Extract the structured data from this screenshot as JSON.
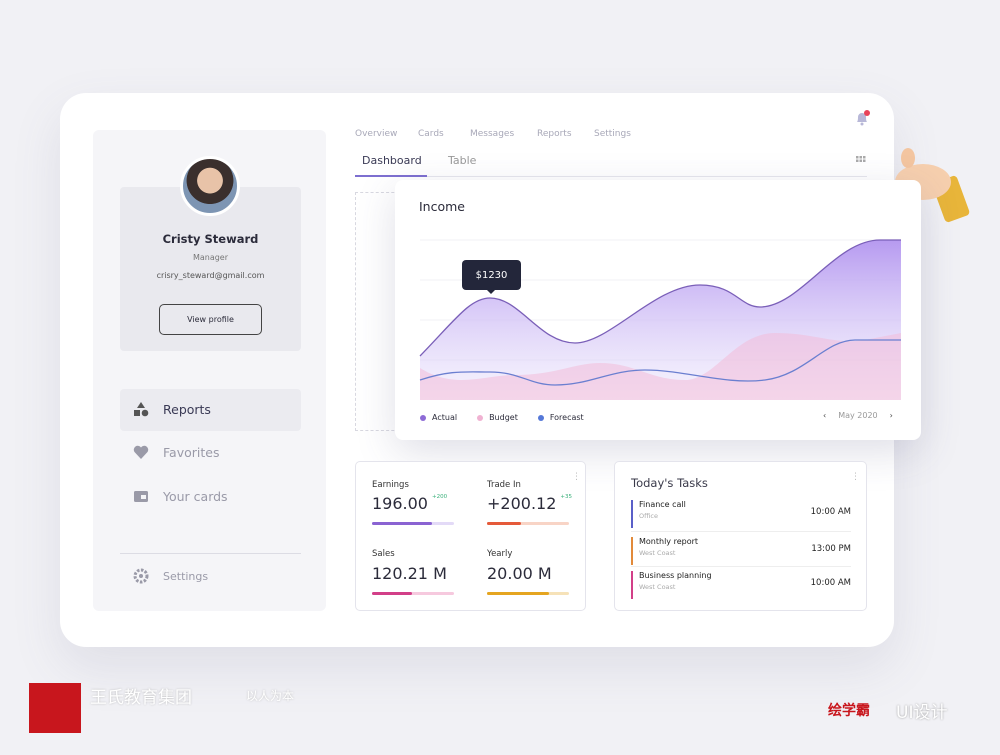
{
  "nav": [
    "Overview",
    "Cards",
    "Messages",
    "Reports",
    "Settings"
  ],
  "tabs": [
    "Dashboard",
    "Table"
  ],
  "profile": {
    "name": "Cristy Steward",
    "role": "Manager",
    "email": "crisry_steward@gmail.com",
    "button": "View profile"
  },
  "menu": [
    "Reports",
    "Favorites",
    "Your cards"
  ],
  "settings": "Settings",
  "income": {
    "title": "Income",
    "tooltip": "$1230",
    "legend": [
      "Actual",
      "Budget",
      "Forecast"
    ],
    "period": "May 2020"
  },
  "stats": [
    {
      "label": "Earnings",
      "value": "196.00",
      "change": "+200"
    },
    {
      "label": "Trade In",
      "value": "+200.12",
      "change": "+35"
    },
    {
      "label": "Sales",
      "value": "120.21 M"
    },
    {
      "label": "Yearly",
      "value": "20.00 M"
    }
  ],
  "tasks": {
    "title": "Today's Tasks",
    "items": [
      {
        "name": "Finance call",
        "place": "Office",
        "time": "10:00 AM"
      },
      {
        "name": "Monthly report",
        "place": "West Coast",
        "time": "13:00 PM"
      },
      {
        "name": "Business planning",
        "place": "West Coast",
        "time": "10:00 AM"
      }
    ]
  },
  "watermark": {
    "company": "王氏教育集团",
    "motto": "以人为本",
    "brand": "绘学霸",
    "course": "UI设计"
  }
}
